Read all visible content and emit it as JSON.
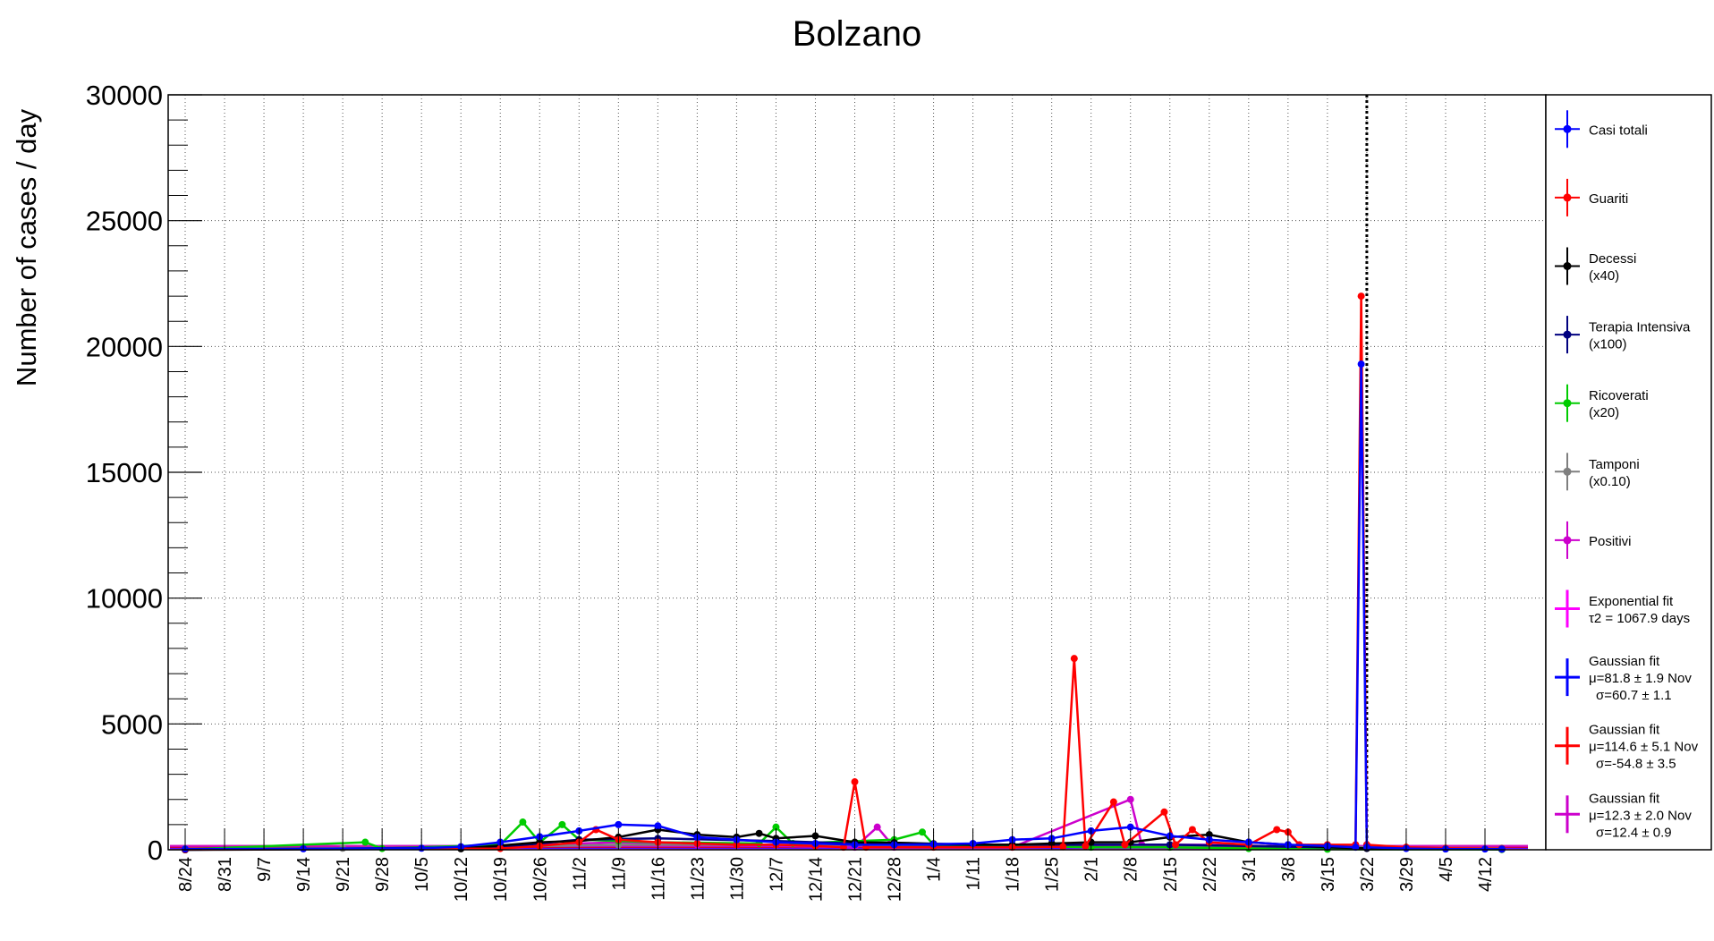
{
  "chart_data": {
    "type": "line",
    "title": "Bolzano",
    "ylabel": "Number of cases / day",
    "xlabel": "",
    "ylim": [
      0,
      30000
    ],
    "yticks": [
      "0",
      "5000",
      "10000",
      "15000",
      "20000",
      "25000",
      "30000"
    ],
    "grid": true,
    "legend_position": "right",
    "x_categories": [
      "8/24",
      "8/31",
      "9/7",
      "9/14",
      "9/21",
      "9/28",
      "10/5",
      "10/12",
      "10/19",
      "10/26",
      "11/2",
      "11/9",
      "11/16",
      "11/23",
      "11/30",
      "12/7",
      "12/14",
      "12/21",
      "12/28",
      "1/4",
      "1/11",
      "1/18",
      "1/25",
      "2/1",
      "2/8",
      "2/15",
      "2/22",
      "3/1",
      "3/8",
      "3/15",
      "3/22",
      "3/29",
      "4/5",
      "4/12"
    ],
    "x_start_date": "2020-08-24",
    "vertical_marker": "3/22",
    "series": [
      {
        "name": "Casi totali",
        "sublabel": "",
        "color": "#0000ff",
        "marker": "dot",
        "points": [
          [
            "2020-08-24",
            30
          ],
          [
            "2020-09-14",
            40
          ],
          [
            "2020-10-05",
            60
          ],
          [
            "2020-10-12",
            120
          ],
          [
            "2020-10-19",
            300
          ],
          [
            "2020-10-26",
            520
          ],
          [
            "2020-11-02",
            750
          ],
          [
            "2020-11-09",
            1000
          ],
          [
            "2020-11-16",
            950
          ],
          [
            "2020-11-23",
            500
          ],
          [
            "2020-11-30",
            400
          ],
          [
            "2020-12-07",
            300
          ],
          [
            "2020-12-14",
            250
          ],
          [
            "2020-12-21",
            200
          ],
          [
            "2020-12-28",
            200
          ],
          [
            "2021-01-04",
            220
          ],
          [
            "2021-01-11",
            250
          ],
          [
            "2021-01-18",
            400
          ],
          [
            "2021-01-25",
            450
          ],
          [
            "2021-02-01",
            750
          ],
          [
            "2021-02-08",
            900
          ],
          [
            "2021-02-15",
            550
          ],
          [
            "2021-02-22",
            400
          ],
          [
            "2021-03-01",
            300
          ],
          [
            "2021-03-08",
            200
          ],
          [
            "2021-03-15",
            150
          ],
          [
            "2021-03-20",
            100
          ],
          [
            "2021-03-21",
            19300
          ],
          [
            "2021-03-22",
            100
          ],
          [
            "2021-03-29",
            50
          ],
          [
            "2021-04-05",
            30
          ],
          [
            "2021-04-12",
            30
          ],
          [
            "2021-04-15",
            30
          ]
        ]
      },
      {
        "name": "Guariti",
        "sublabel": "",
        "color": "#ff0000",
        "marker": "dot",
        "points": [
          [
            "2020-08-24",
            10
          ],
          [
            "2020-10-19",
            50
          ],
          [
            "2020-10-26",
            150
          ],
          [
            "2020-11-02",
            300
          ],
          [
            "2020-11-05",
            800
          ],
          [
            "2020-11-09",
            400
          ],
          [
            "2020-11-16",
            300
          ],
          [
            "2020-11-23",
            250
          ],
          [
            "2020-11-30",
            200
          ],
          [
            "2020-12-07",
            200
          ],
          [
            "2020-12-14",
            150
          ],
          [
            "2020-12-19",
            100
          ],
          [
            "2020-12-21",
            2700
          ],
          [
            "2020-12-23",
            100
          ],
          [
            "2021-01-04",
            100
          ],
          [
            "2021-01-18",
            100
          ],
          [
            "2021-01-27",
            120
          ],
          [
            "2021-01-29",
            7600
          ],
          [
            "2021-01-31",
            150
          ],
          [
            "2021-02-05",
            1900
          ],
          [
            "2021-02-07",
            200
          ],
          [
            "2021-02-14",
            1500
          ],
          [
            "2021-02-16",
            200
          ],
          [
            "2021-02-19",
            800
          ],
          [
            "2021-02-22",
            300
          ],
          [
            "2021-03-01",
            200
          ],
          [
            "2021-03-06",
            800
          ],
          [
            "2021-03-08",
            700
          ],
          [
            "2021-03-10",
            200
          ],
          [
            "2021-03-15",
            200
          ],
          [
            "2021-03-20",
            200
          ],
          [
            "2021-03-21",
            22000
          ],
          [
            "2021-03-22",
            200
          ],
          [
            "2021-03-29",
            100
          ],
          [
            "2021-04-05",
            60
          ],
          [
            "2021-04-15",
            50
          ]
        ]
      },
      {
        "name": "Decessi",
        "sublabel": "(x40)",
        "color": "#000000",
        "marker": "dot",
        "points": [
          [
            "2020-08-24",
            0
          ],
          [
            "2020-10-12",
            40
          ],
          [
            "2020-10-26",
            300
          ],
          [
            "2020-11-02",
            350
          ],
          [
            "2020-11-09",
            500
          ],
          [
            "2020-11-16",
            800
          ],
          [
            "2020-11-23",
            600
          ],
          [
            "2020-11-30",
            500
          ],
          [
            "2020-12-04",
            650
          ],
          [
            "2020-12-07",
            450
          ],
          [
            "2020-12-14",
            550
          ],
          [
            "2020-12-21",
            300
          ],
          [
            "2020-12-28",
            280
          ],
          [
            "2021-01-04",
            240
          ],
          [
            "2021-01-11",
            200
          ],
          [
            "2021-01-18",
            200
          ],
          [
            "2021-01-25",
            250
          ],
          [
            "2021-02-01",
            300
          ],
          [
            "2021-02-08",
            300
          ],
          [
            "2021-02-15",
            500
          ],
          [
            "2021-02-22",
            600
          ],
          [
            "2021-03-01",
            300
          ],
          [
            "2021-03-08",
            200
          ],
          [
            "2021-03-15",
            100
          ],
          [
            "2021-03-22",
            60
          ],
          [
            "2021-04-05",
            40
          ],
          [
            "2021-04-15",
            40
          ]
        ]
      },
      {
        "name": "Terapia Intensiva",
        "sublabel": "(x100)",
        "color": "#00007f",
        "marker": "dot",
        "points": [
          [
            "2020-08-24",
            0
          ],
          [
            "2020-10-19",
            100
          ],
          [
            "2020-11-02",
            400
          ],
          [
            "2020-11-16",
            450
          ],
          [
            "2020-12-07",
            350
          ],
          [
            "2020-12-28",
            200
          ],
          [
            "2021-01-25",
            200
          ],
          [
            "2021-02-15",
            200
          ],
          [
            "2021-03-15",
            100
          ],
          [
            "2021-03-22",
            50
          ],
          [
            "2021-04-15",
            20
          ]
        ]
      },
      {
        "name": "Ricoverati",
        "sublabel": "(x20)",
        "color": "#00cc00",
        "marker": "dot",
        "points": [
          [
            "2020-08-24",
            10
          ],
          [
            "2020-09-25",
            300
          ],
          [
            "2020-09-28",
            50
          ],
          [
            "2020-10-19",
            200
          ],
          [
            "2020-10-23",
            1100
          ],
          [
            "2020-10-26",
            300
          ],
          [
            "2020-10-30",
            1000
          ],
          [
            "2020-11-02",
            400
          ],
          [
            "2020-11-09",
            350
          ],
          [
            "2020-11-16",
            300
          ],
          [
            "2020-12-04",
            250
          ],
          [
            "2020-12-07",
            900
          ],
          [
            "2020-12-10",
            250
          ],
          [
            "2020-12-28",
            400
          ],
          [
            "2021-01-02",
            700
          ],
          [
            "2021-01-04",
            200
          ],
          [
            "2021-01-18",
            150
          ],
          [
            "2021-02-01",
            100
          ],
          [
            "2021-02-15",
            100
          ],
          [
            "2021-03-01",
            50
          ],
          [
            "2021-03-15",
            20
          ],
          [
            "2021-04-15",
            10
          ]
        ]
      },
      {
        "name": "Tamponi",
        "sublabel": "(x0.10)",
        "color": "#7f7f7f",
        "marker": "dot",
        "points": [
          [
            "2020-08-24",
            40
          ],
          [
            "2020-09-21",
            60
          ],
          [
            "2020-10-19",
            120
          ],
          [
            "2020-11-09",
            200
          ],
          [
            "2020-12-07",
            200
          ],
          [
            "2021-01-04",
            180
          ],
          [
            "2021-02-01",
            200
          ],
          [
            "2021-03-01",
            150
          ],
          [
            "2021-03-22",
            100
          ],
          [
            "2021-04-15",
            60
          ]
        ]
      },
      {
        "name": "Positivi",
        "sublabel": "",
        "color": "#cc00cc",
        "marker": "dot",
        "points": [
          [
            "2020-08-24",
            10
          ],
          [
            "2020-10-12",
            50
          ],
          [
            "2020-10-26",
            200
          ],
          [
            "2020-11-09",
            300
          ],
          [
            "2020-11-23",
            200
          ],
          [
            "2020-12-21",
            100
          ],
          [
            "2020-12-25",
            900
          ],
          [
            "2020-12-28",
            100
          ],
          [
            "2021-01-18",
            100
          ],
          [
            "2021-02-08",
            2000
          ],
          [
            "2021-02-10",
            200
          ],
          [
            "2021-02-22",
            200
          ],
          [
            "2021-03-15",
            100
          ],
          [
            "2021-04-15",
            20
          ]
        ]
      }
    ],
    "fits": [
      {
        "name": "Exponential fit",
        "lines": [
          "τ2 = 1067.9 days"
        ],
        "color": "#ff00ff"
      },
      {
        "name": "Gaussian fit",
        "lines": [
          "μ=81.8 ± 1.9 Nov",
          "σ=60.7 ± 1.1"
        ],
        "color": "#0000ff"
      },
      {
        "name": "Gaussian fit",
        "lines": [
          "μ=114.6 ± 5.1 Nov",
          "σ=-54.8 ± 3.5"
        ],
        "color": "#ff0000"
      },
      {
        "name": "Gaussian fit",
        "lines": [
          "μ=12.3 ± 2.0 Nov",
          "σ=12.4 ± 0.9"
        ],
        "color": "#cc00cc"
      }
    ]
  }
}
